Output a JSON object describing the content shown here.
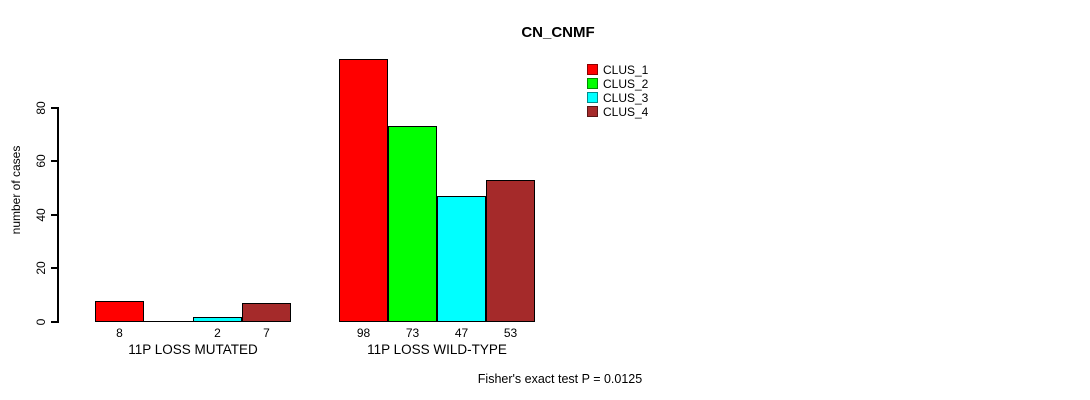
{
  "title": "CN_CNMF",
  "chart_data": {
    "type": "bar",
    "title": "CN_CNMF",
    "ylabel": "number of cases",
    "yticks": [
      0,
      20,
      40,
      60,
      80
    ],
    "ylim": [
      0,
      100
    ],
    "grid": false,
    "legend_position": "top-right",
    "series": [
      {
        "name": "CLUS_1",
        "color": "#FF0000"
      },
      {
        "name": "CLUS_2",
        "color": "#00FF00"
      },
      {
        "name": "CLUS_3",
        "color": "#00FFFF"
      },
      {
        "name": "CLUS_4",
        "color": "#A52A2A"
      }
    ],
    "categories": [
      "11P LOSS MUTATED",
      "11P LOSS WILD-TYPE"
    ],
    "groups": [
      {
        "label": "11P LOSS MUTATED",
        "values": [
          8,
          0,
          2,
          7
        ],
        "bar_labels": [
          "8",
          "",
          "2",
          "7"
        ]
      },
      {
        "label": "11P LOSS WILD-TYPE",
        "values": [
          98,
          73,
          47,
          53
        ],
        "bar_labels": [
          "98",
          "73",
          "47",
          "53"
        ]
      }
    ],
    "annotation": "Fisher's exact test P = 0.0125"
  }
}
